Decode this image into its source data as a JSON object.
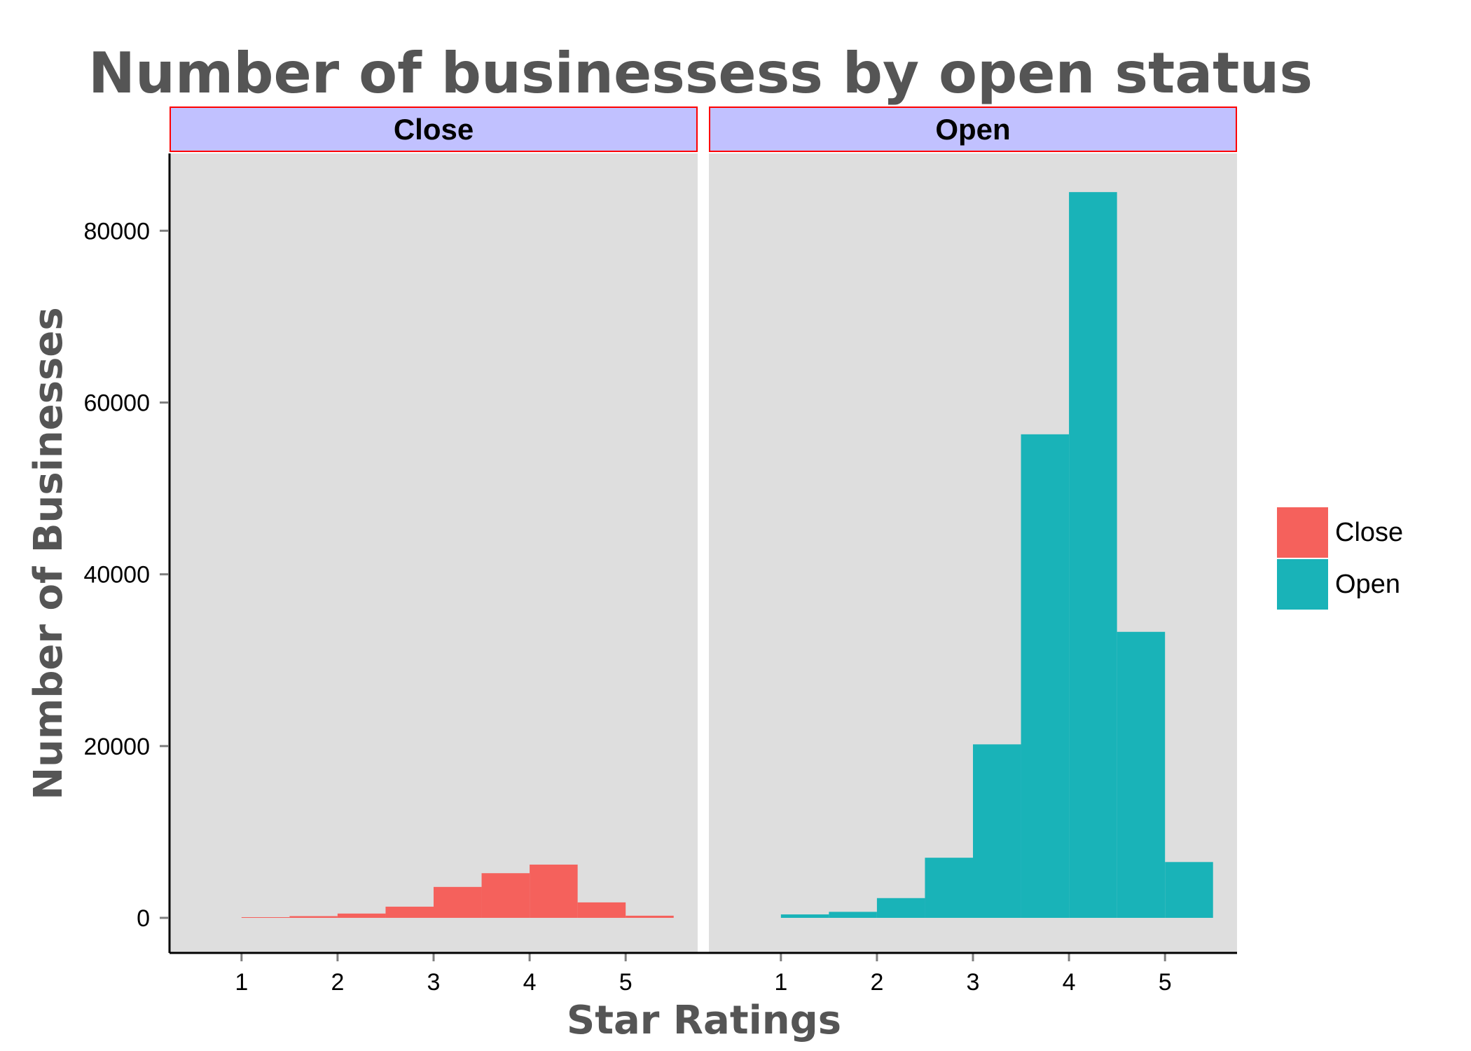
{
  "chart_data": {
    "type": "bar",
    "title": "Number of businessess by open status",
    "xlabel": "Star Ratings",
    "ylabel": "Number of Businesses",
    "x_ticks": [
      1,
      2,
      3,
      4,
      5
    ],
    "y_ticks": [
      0,
      20000,
      40000,
      60000,
      80000
    ],
    "y_tick_labels": [
      "0",
      "20000",
      "40000",
      "60000",
      "80000"
    ],
    "x_tick_labels": [
      "1",
      "2",
      "3",
      "4",
      "5"
    ],
    "xlim": [
      0.25,
      5.75
    ],
    "ylim": [
      -4000,
      89000
    ],
    "bin_width": 0.5,
    "bin_starts": [
      1.0,
      1.5,
      2.0,
      2.5,
      3.0,
      3.5,
      4.0,
      4.5,
      5.0
    ],
    "grid": false,
    "legend_position": "right",
    "facets": [
      {
        "name": "Close",
        "color": "#F8766D",
        "values": [
          80,
          200,
          500,
          1300,
          3600,
          5200,
          6200,
          1800,
          250
        ]
      },
      {
        "name": "Open",
        "color": "#00BFC4",
        "values": [
          400,
          700,
          2300,
          7000,
          20200,
          56300,
          84500,
          33300,
          6500
        ]
      }
    ],
    "legend": [
      {
        "label": "Close",
        "color": "#F8766D"
      },
      {
        "label": "Open",
        "color": "#00BFC4"
      }
    ]
  },
  "colors": {
    "panel_background": "#DEDEDE",
    "strip_fill": "#C1C1FF",
    "strip_border": "#FF0000",
    "close_fill": "#F5615C",
    "open_fill": "#19B3B8"
  }
}
